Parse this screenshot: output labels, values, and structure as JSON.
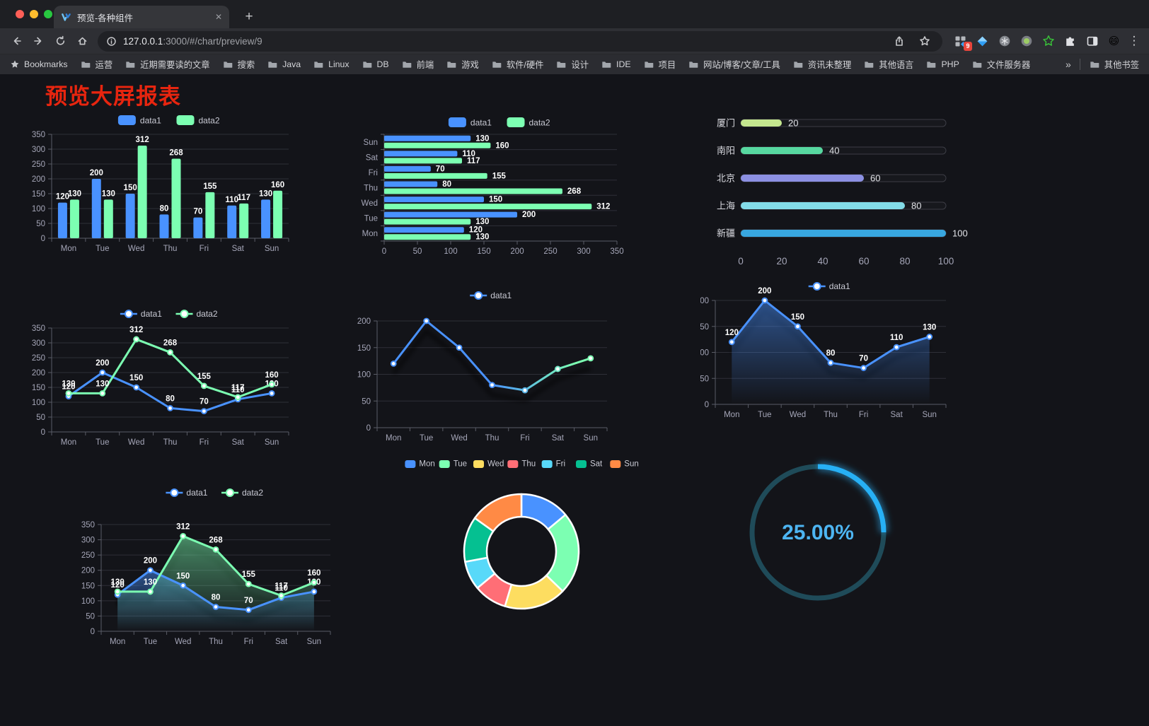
{
  "browser": {
    "tab_title": "预览-各种组件",
    "url_host": "127.0.0.1",
    "url_rest": ":3000/#/chart/preview/9",
    "extension_badge": "9",
    "bookmarks_label": "Bookmarks",
    "bookmarks": [
      "运营",
      "近期需要读的文章",
      "搜索",
      "Java",
      "Linux",
      "DB",
      "前端",
      "游戏",
      "软件/硬件",
      "设计",
      "IDE",
      "项目",
      "网站/博客/文章/工具",
      "资讯未整理",
      "其他语言",
      "PHP",
      "文件服务器"
    ],
    "bookmarks_overflow": "»",
    "other_bookmarks": "其他书签"
  },
  "page": {
    "title": "预览大屏报表",
    "title_color": "#e7250f"
  },
  "palette": {
    "blue": "#4992ff",
    "green": "#7cffb2",
    "yellow": "#fddd60",
    "red": "#ff6e76",
    "lightblue": "#58d9f9",
    "teal": "#05c091",
    "orange": "#ff8a45",
    "axis_text": "#a5a6b8",
    "grid_line": "#2e2f38"
  },
  "chart_data": [
    {
      "type": "bar",
      "categories": [
        "Mon",
        "Tue",
        "Wed",
        "Thu",
        "Fri",
        "Sat",
        "Sun"
      ],
      "ylim": [
        0,
        350
      ],
      "ystep": 50,
      "series": [
        {
          "name": "data1",
          "color": "#4992ff",
          "values": [
            120,
            200,
            150,
            80,
            70,
            110,
            130
          ]
        },
        {
          "name": "data2",
          "color": "#7cffb2",
          "values": [
            130,
            130,
            312,
            268,
            155,
            117,
            160
          ]
        }
      ]
    },
    {
      "type": "hbar",
      "categories": [
        "Sun",
        "Sat",
        "Fri",
        "Thu",
        "Wed",
        "Tue",
        "Mon"
      ],
      "xlim": [
        0,
        350
      ],
      "xstep": 50,
      "series": [
        {
          "name": "data1",
          "color": "#4992ff",
          "values": [
            130,
            110,
            70,
            80,
            150,
            200,
            120
          ]
        },
        {
          "name": "data2",
          "color": "#7cffb2",
          "values": [
            160,
            117,
            155,
            268,
            312,
            130,
            130
          ]
        }
      ]
    },
    {
      "type": "progress",
      "max": 100,
      "axis_ticks": [
        0,
        20,
        40,
        60,
        80,
        100
      ],
      "items": [
        {
          "label": "厦门",
          "value": 20,
          "color": "#c5e78f"
        },
        {
          "label": "南阳",
          "value": 40,
          "color": "#57d8a0"
        },
        {
          "label": "北京",
          "value": 60,
          "color": "#8c90e2"
        },
        {
          "label": "上海",
          "value": 80,
          "color": "#83dce8"
        },
        {
          "label": "新疆",
          "value": 100,
          "color": "#38a7e0"
        }
      ]
    },
    {
      "type": "line",
      "categories": [
        "Mon",
        "Tue",
        "Wed",
        "Thu",
        "Fri",
        "Sat",
        "Sun"
      ],
      "ylim": [
        0,
        350
      ],
      "ystep": 50,
      "show_labels": true,
      "series": [
        {
          "name": "data1",
          "color": "#4992ff",
          "values": [
            120,
            200,
            150,
            80,
            70,
            110,
            130
          ]
        },
        {
          "name": "data2",
          "color": "#7cffb2",
          "values": [
            130,
            130,
            312,
            268,
            155,
            117,
            160
          ]
        }
      ]
    },
    {
      "type": "line",
      "categories": [
        "Mon",
        "Tue",
        "Wed",
        "Thu",
        "Fri",
        "Sat",
        "Sun"
      ],
      "ylim": [
        0,
        200
      ],
      "ystep": 50,
      "show_labels": false,
      "shadow": true,
      "gradient": [
        "#4992ff",
        "#7cffb2"
      ],
      "series": [
        {
          "name": "data1",
          "color": "#4992ff",
          "values": [
            120,
            200,
            150,
            80,
            70,
            110,
            130
          ]
        }
      ]
    },
    {
      "type": "line",
      "categories": [
        "Mon",
        "Tue",
        "Wed",
        "Thu",
        "Fri",
        "Sat",
        "Sun"
      ],
      "ylim": [
        0,
        200
      ],
      "ystep": 50,
      "show_labels": true,
      "shadow": true,
      "area": true,
      "series": [
        {
          "name": "data1",
          "color": "#4992ff",
          "values": [
            120,
            200,
            150,
            80,
            70,
            110,
            130
          ]
        }
      ]
    },
    {
      "type": "line",
      "categories": [
        "Mon",
        "Tue",
        "Wed",
        "Thu",
        "Fri",
        "Sat",
        "Sun"
      ],
      "ylim": [
        0,
        350
      ],
      "ystep": 50,
      "show_labels": true,
      "shadow": true,
      "area": true,
      "series": [
        {
          "name": "data1",
          "color": "#4992ff",
          "values": [
            120,
            200,
            150,
            80,
            70,
            110,
            130
          ]
        },
        {
          "name": "data2",
          "color": "#7cffb2",
          "values": [
            130,
            130,
            312,
            268,
            155,
            117,
            160
          ]
        }
      ]
    },
    {
      "type": "donut",
      "items": [
        {
          "label": "Mon",
          "value": 120,
          "color": "#4992ff"
        },
        {
          "label": "Tue",
          "value": 200,
          "color": "#7cffb2"
        },
        {
          "label": "Wed",
          "value": 150,
          "color": "#fddd60"
        },
        {
          "label": "Thu",
          "value": 80,
          "color": "#ff6e76"
        },
        {
          "label": "Fri",
          "value": 70,
          "color": "#58d9f9"
        },
        {
          "label": "Sat",
          "value": 110,
          "color": "#05c091"
        },
        {
          "label": "Sun",
          "value": 130,
          "color": "#ff8a45"
        }
      ]
    },
    {
      "type": "gauge",
      "value": 25,
      "display": "25.00%",
      "arc_color": "#27b0f5",
      "track_color": "#1f4b59",
      "text_color": "#4db5f2"
    }
  ]
}
